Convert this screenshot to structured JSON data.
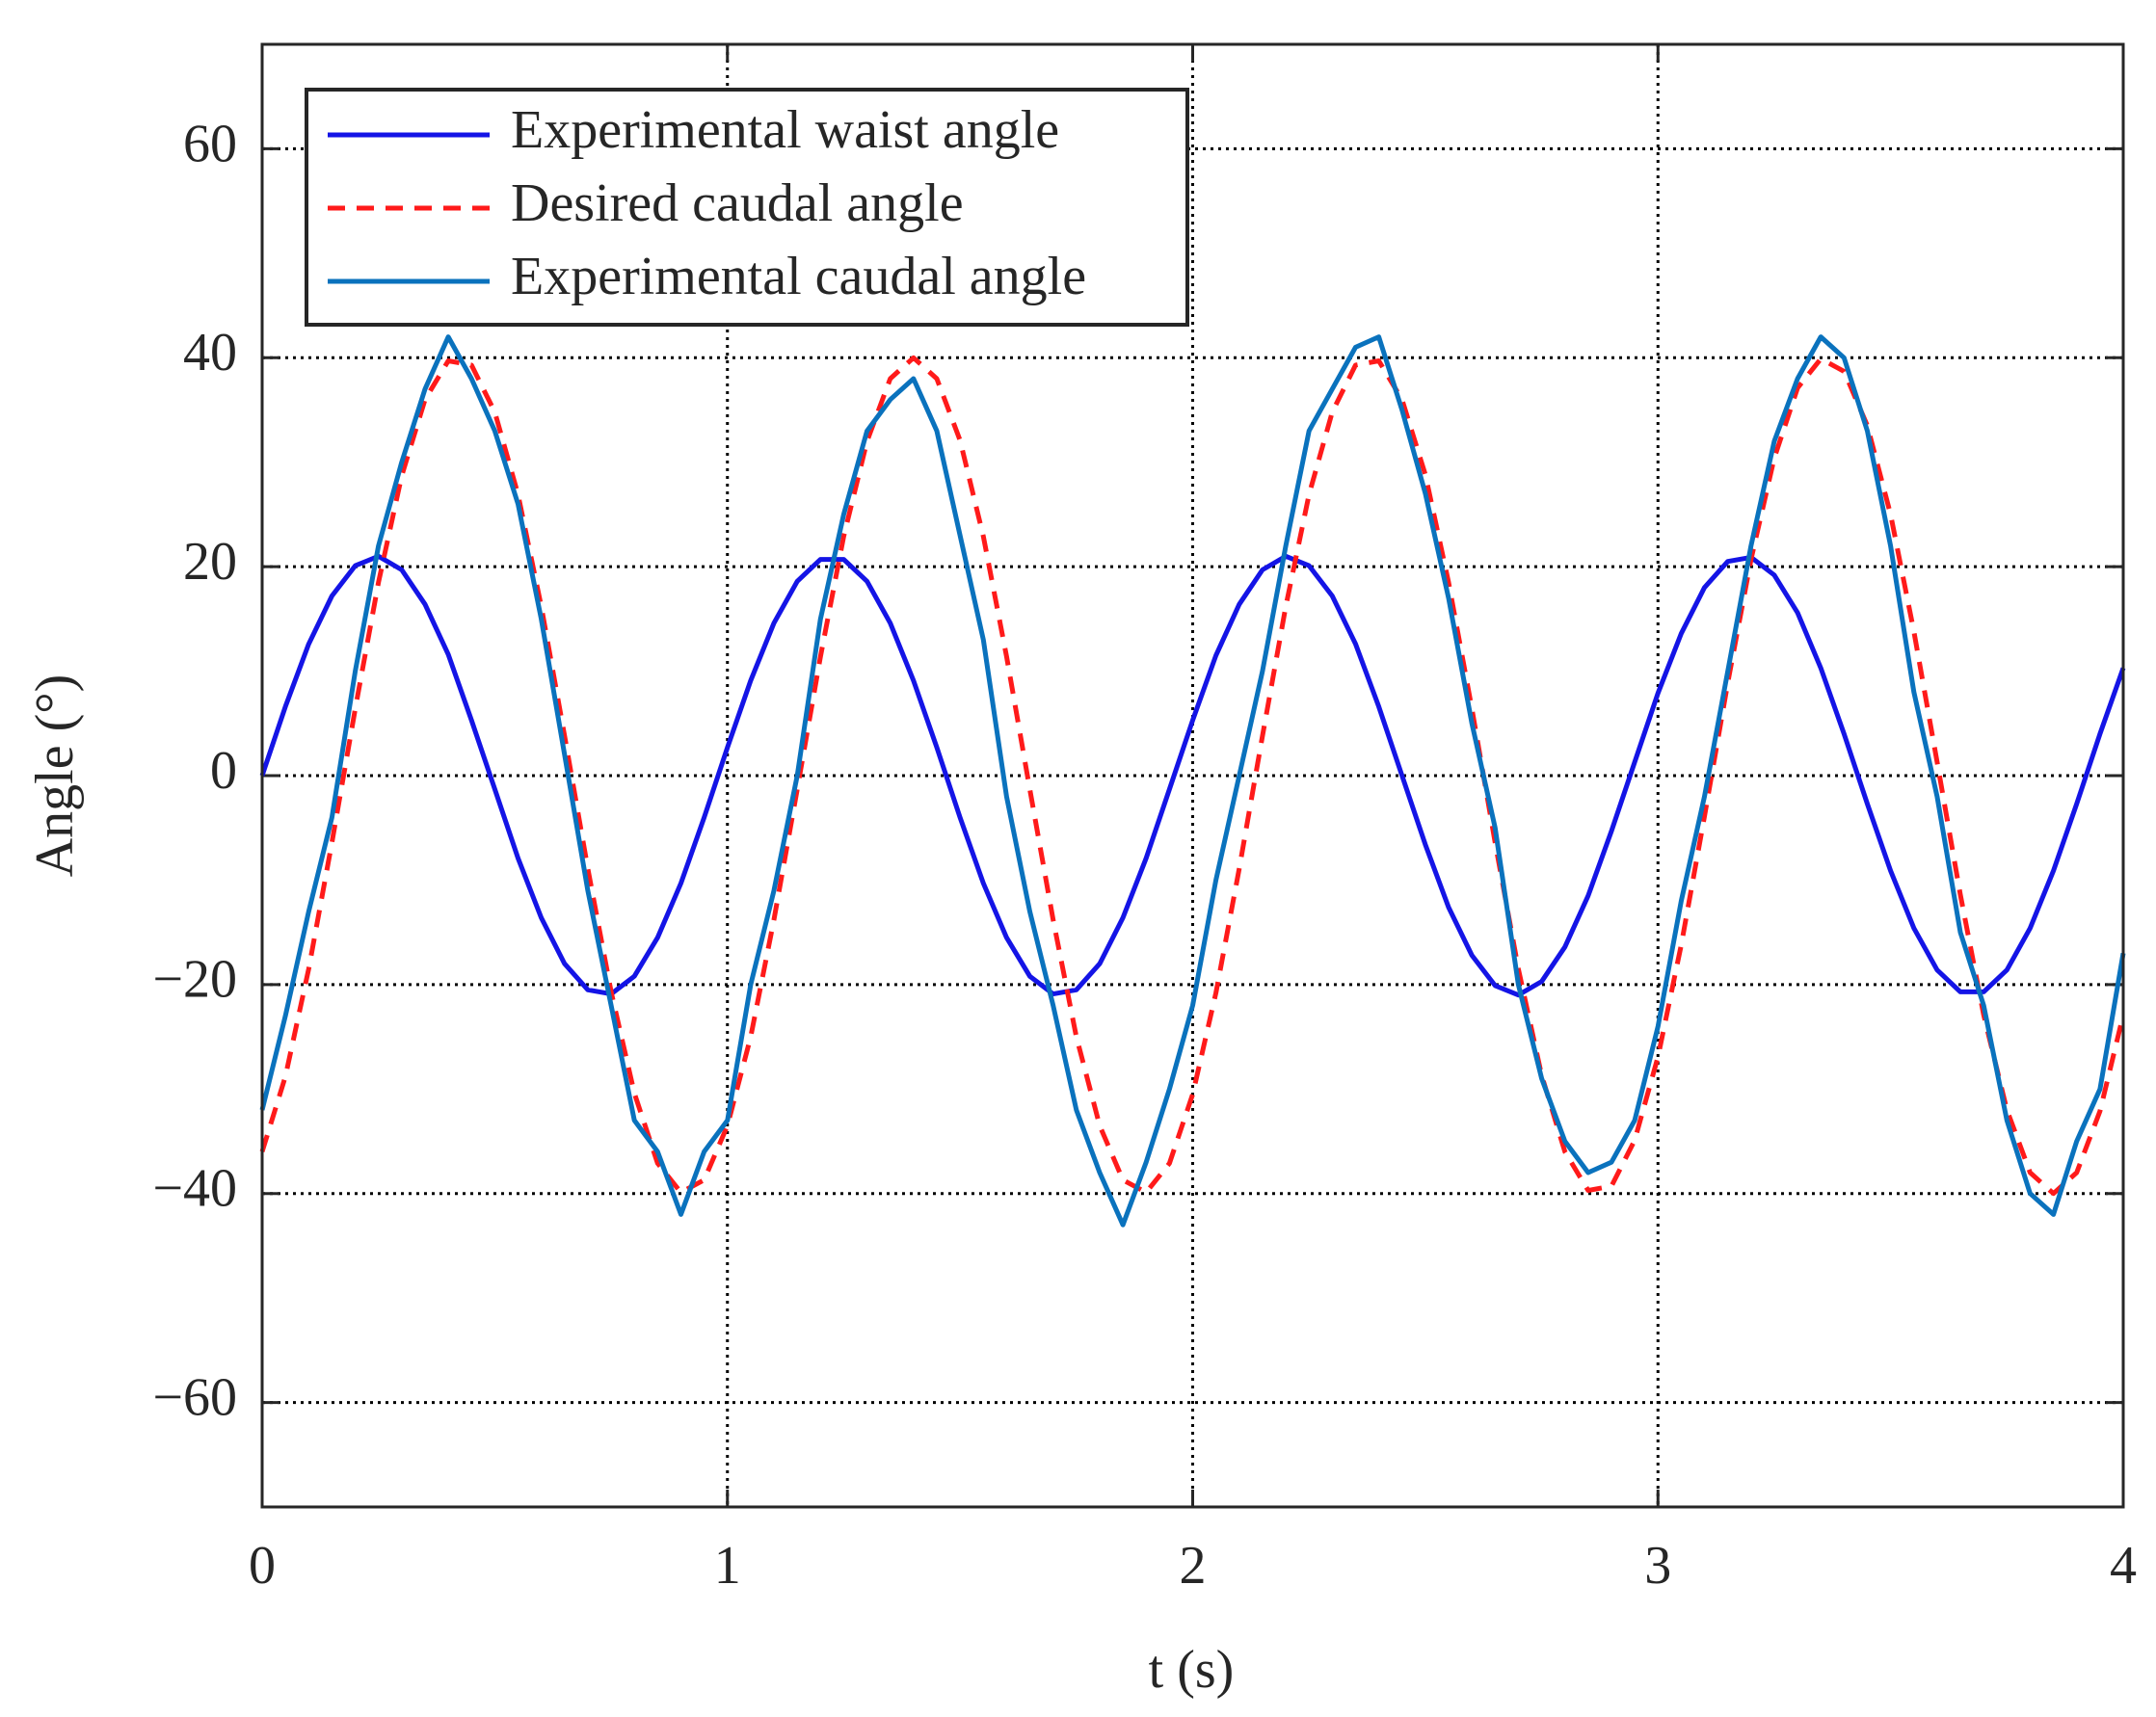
{
  "chart_data": {
    "type": "line",
    "xlabel": "t (s)",
    "ylabel": "Angle (°)",
    "xlim": [
      0,
      4
    ],
    "ylim": [
      -70,
      70
    ],
    "xticks": [
      0,
      1,
      2,
      3,
      4
    ],
    "yticks": [
      {
        "value": -60,
        "label": "−60"
      },
      {
        "value": -40,
        "label": "−40"
      },
      {
        "value": -20,
        "label": "−20"
      },
      0,
      20,
      40,
      60
    ],
    "grid": true,
    "legend": "upper left",
    "x": [
      0,
      0.05,
      0.1,
      0.15,
      0.2,
      0.25,
      0.3,
      0.35,
      0.4,
      0.45,
      0.5,
      0.55,
      0.6,
      0.65,
      0.7,
      0.75,
      0.8,
      0.85,
      0.9,
      0.95,
      1,
      1.05,
      1.1,
      1.15,
      1.2,
      1.25,
      1.3,
      1.35,
      1.4,
      1.45,
      1.5,
      1.55,
      1.6,
      1.65,
      1.7,
      1.75,
      1.8,
      1.85,
      1.9,
      1.95,
      2,
      2.05,
      2.1,
      2.15,
      2.2,
      2.25,
      2.3,
      2.35,
      2.4,
      2.45,
      2.5,
      2.55,
      2.6,
      2.65,
      2.7,
      2.75,
      2.8,
      2.85,
      2.9,
      2.95,
      3,
      3.05,
      3.1,
      3.15,
      3.2,
      3.25,
      3.3,
      3.35,
      3.4,
      3.45,
      3.5,
      3.55,
      3.6,
      3.65,
      3.7,
      3.75,
      3.8,
      3.85,
      3.9,
      3.95,
      4
    ],
    "series": [
      {
        "name": "Experimental waist angle",
        "color": "#1414e6",
        "dash": false,
        "values": [
          0,
          6.6,
          12.6,
          17.2,
          20.1,
          21.0,
          19.7,
          16.4,
          11.6,
          5.3,
          -1.3,
          -7.9,
          -13.6,
          -18.0,
          -20.5,
          -20.9,
          -19.2,
          -15.5,
          -10.3,
          -4.0,
          2.7,
          9.1,
          14.6,
          18.6,
          20.7,
          20.7,
          18.6,
          14.6,
          9.1,
          2.7,
          -4.0,
          -10.3,
          -15.5,
          -19.2,
          -20.9,
          -20.5,
          -18.0,
          -13.6,
          -7.9,
          -1.3,
          5.3,
          11.5,
          16.4,
          19.7,
          21.0,
          20.1,
          17.2,
          12.6,
          6.6,
          0.0,
          -6.6,
          -12.6,
          -17.2,
          -20.1,
          -21.0,
          -19.7,
          -16.4,
          -11.5,
          -5.3,
          1.3,
          7.9,
          13.6,
          18.0,
          20.5,
          20.9,
          19.2,
          15.6,
          10.3,
          4.0,
          -2.7,
          -9.1,
          -14.6,
          -18.6,
          -20.7,
          -20.7,
          -18.6,
          -14.6,
          -9.1,
          -2.7,
          4.0,
          10.3
        ]
      },
      {
        "name": "Desired caudal angle",
        "color": "#ff1a1a",
        "dash": true,
        "values": [
          -36.0,
          -28.8,
          -18.5,
          -6.4,
          6.4,
          18.5,
          28.7,
          36.0,
          39.7,
          39.3,
          34.8,
          26.9,
          16.2,
          3.8,
          -8.9,
          -20.7,
          -30.4,
          -37.1,
          -39.9,
          -38.7,
          -33.5,
          -25.0,
          -13.8,
          -1.3,
          11.4,
          22.9,
          32.0,
          38.0,
          40.0,
          38.0,
          32.1,
          22.9,
          11.4,
          -1.3,
          -13.8,
          -25.0,
          -33.5,
          -38.7,
          -39.9,
          -37.1,
          -30.5,
          -20.8,
          -8.9,
          3.8,
          16.2,
          26.9,
          34.8,
          39.3,
          39.7,
          36.0,
          28.8,
          18.5,
          6.4,
          -6.4,
          -18.5,
          -28.7,
          -36.0,
          -39.7,
          -39.3,
          -34.9,
          -26.9,
          -16.2,
          -3.9,
          8.9,
          20.7,
          30.4,
          37.1,
          39.9,
          38.7,
          33.5,
          25.0,
          13.8,
          1.3,
          -11.4,
          -22.9,
          -32.0,
          -38.0,
          -40.0,
          -38.0,
          -32.1,
          -22.9
        ]
      },
      {
        "name": "Experimental caudal angle",
        "color": "#0a72bd",
        "dash": false,
        "values": [
          -32,
          -23,
          -13,
          -4,
          10,
          22,
          30,
          37,
          42,
          38,
          33,
          26,
          15,
          2,
          -11,
          -22,
          -33,
          -36,
          -42,
          -36,
          -33,
          -20,
          -11,
          0,
          15,
          25,
          33,
          36,
          38,
          33,
          23,
          13,
          -2,
          -13,
          -22,
          -32,
          -38,
          -43,
          -37,
          -30,
          -22,
          -10,
          0,
          10,
          22,
          33,
          37,
          41,
          42,
          35,
          27,
          17,
          5,
          -5,
          -20,
          -29,
          -35,
          -38,
          -37,
          -33,
          -24,
          -12,
          -2,
          10,
          22,
          32,
          38,
          42,
          40,
          33,
          22,
          8,
          -2,
          -15,
          -22,
          -33,
          -40,
          -42,
          -35,
          -30,
          -17
        ]
      }
    ]
  }
}
